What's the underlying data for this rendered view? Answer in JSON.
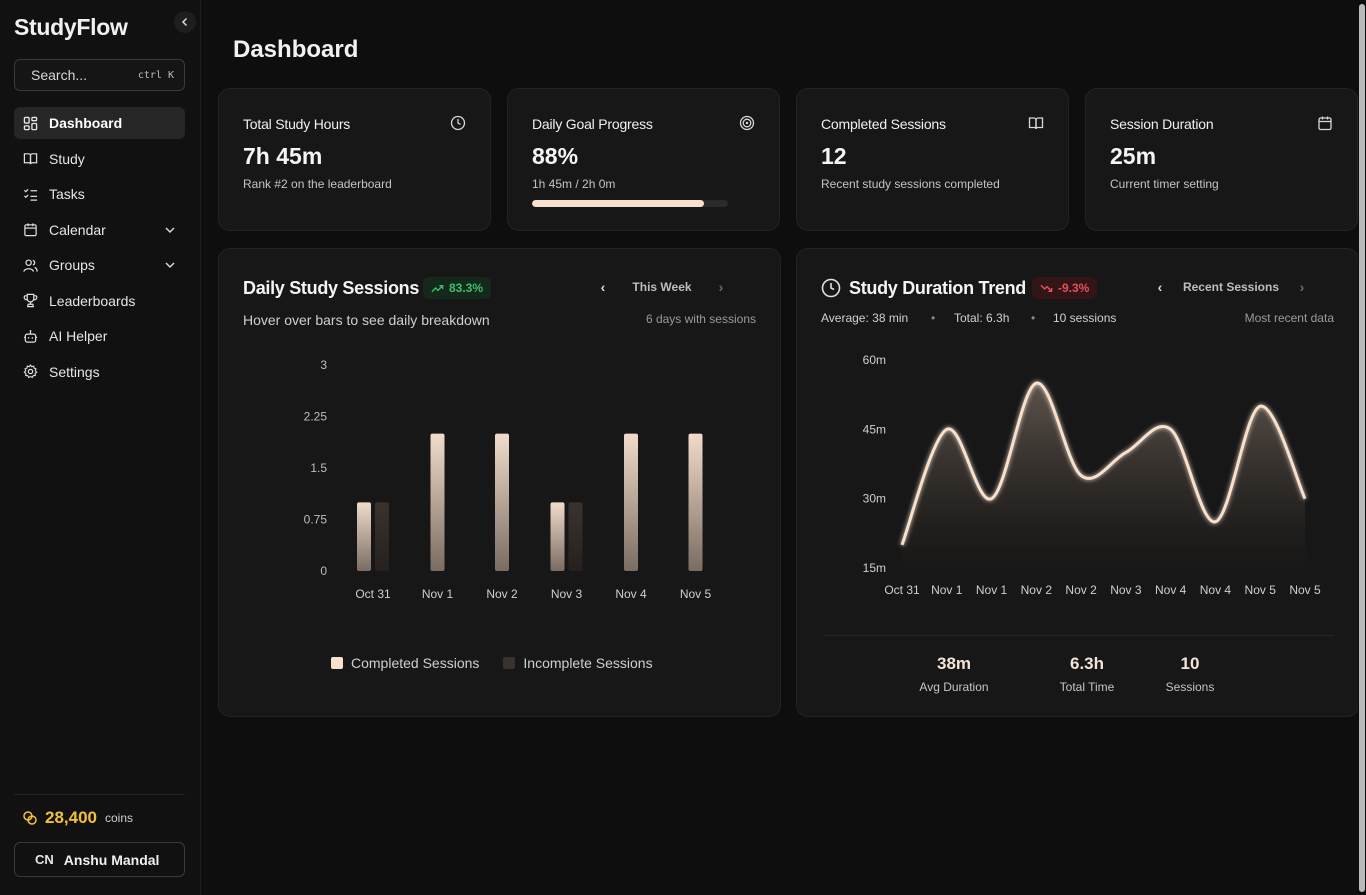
{
  "sidebar": {
    "brand": "StudyFlow",
    "search_placeholder": "Search...",
    "search_shortcut": "ctrl K",
    "nav": [
      {
        "label": "Dashboard",
        "icon": "dashboard-icon",
        "active": true
      },
      {
        "label": "Study",
        "icon": "book-icon"
      },
      {
        "label": "Tasks",
        "icon": "checklist-icon"
      },
      {
        "label": "Calendar",
        "icon": "calendar-icon",
        "expandable": true
      },
      {
        "label": "Groups",
        "icon": "users-icon",
        "expandable": true
      },
      {
        "label": "Leaderboards",
        "icon": "trophy-icon"
      },
      {
        "label": "AI Helper",
        "icon": "bot-icon"
      },
      {
        "label": "Settings",
        "icon": "gear-icon"
      }
    ],
    "coins": {
      "value": "28,400",
      "label": "coins"
    },
    "user": {
      "initials": "CN",
      "name": "Anshu Mandal"
    }
  },
  "page": {
    "title": "Dashboard"
  },
  "stats": [
    {
      "label": "Total Study Hours",
      "value": "7h 45m",
      "sub": "Rank #2 on the leaderboard",
      "icon": "clock-icon"
    },
    {
      "label": "Daily Goal Progress",
      "value": "88%",
      "sub": "1h 45m / 2h 0m",
      "icon": "target-icon",
      "progress": 0.88
    },
    {
      "label": "Completed Sessions",
      "value": "12",
      "sub": "Recent study sessions completed",
      "icon": "book-open-icon"
    },
    {
      "label": "Session Duration",
      "value": "25m",
      "sub": "Current timer setting",
      "icon": "calendar-icon"
    }
  ],
  "daily_sessions": {
    "title": "Daily Study Sessions",
    "badge": "83.3%",
    "range_label": "This Week",
    "subtitle": "Hover over bars to see daily breakdown",
    "note": "6 days with sessions",
    "legend": [
      "Completed Sessions",
      "Incomplete Sessions"
    ]
  },
  "duration_trend": {
    "title": "Study Duration Trend",
    "badge": "-9.3%",
    "range_label": "Recent Sessions",
    "meta": {
      "average": "Average: 38 min",
      "total": "Total: 6.3h",
      "sessions": "10 sessions"
    },
    "note": "Most recent data",
    "summary": [
      {
        "value": "38m",
        "label": "Avg Duration"
      },
      {
        "value": "6.3h",
        "label": "Total Time"
      },
      {
        "value": "10",
        "label": "Sessions"
      }
    ]
  },
  "colors": {
    "accent": "#f7e1cd",
    "coins": "#f3c13a",
    "positive": "#3fbf6a",
    "negative": "#e2525a"
  },
  "chart_data": [
    {
      "type": "bar",
      "title": "Daily Study Sessions",
      "categories": [
        "Oct 31",
        "Nov 1",
        "Nov 2",
        "Nov 3",
        "Nov 4",
        "Nov 5"
      ],
      "series": [
        {
          "name": "Completed Sessions",
          "values": [
            1,
            2,
            2,
            1,
            2,
            2
          ]
        },
        {
          "name": "Incomplete Sessions",
          "values": [
            1,
            0,
            0,
            1,
            0,
            0
          ]
        }
      ],
      "yticks": [
        "0",
        "0.75",
        "1.5",
        "2.25",
        "3"
      ],
      "ylim": [
        0,
        3
      ]
    },
    {
      "type": "area",
      "title": "Study Duration Trend",
      "categories": [
        "Oct 31",
        "Nov 1",
        "Nov 1",
        "Nov 2",
        "Nov 2",
        "Nov 3",
        "Nov 4",
        "Nov 4",
        "Nov 5",
        "Nov 5"
      ],
      "values": [
        20,
        45,
        30,
        55,
        35,
        40,
        45,
        25,
        50,
        30
      ],
      "yticks": [
        "15m",
        "30m",
        "45m",
        "60m"
      ],
      "ylim": [
        15,
        60
      ]
    }
  ]
}
